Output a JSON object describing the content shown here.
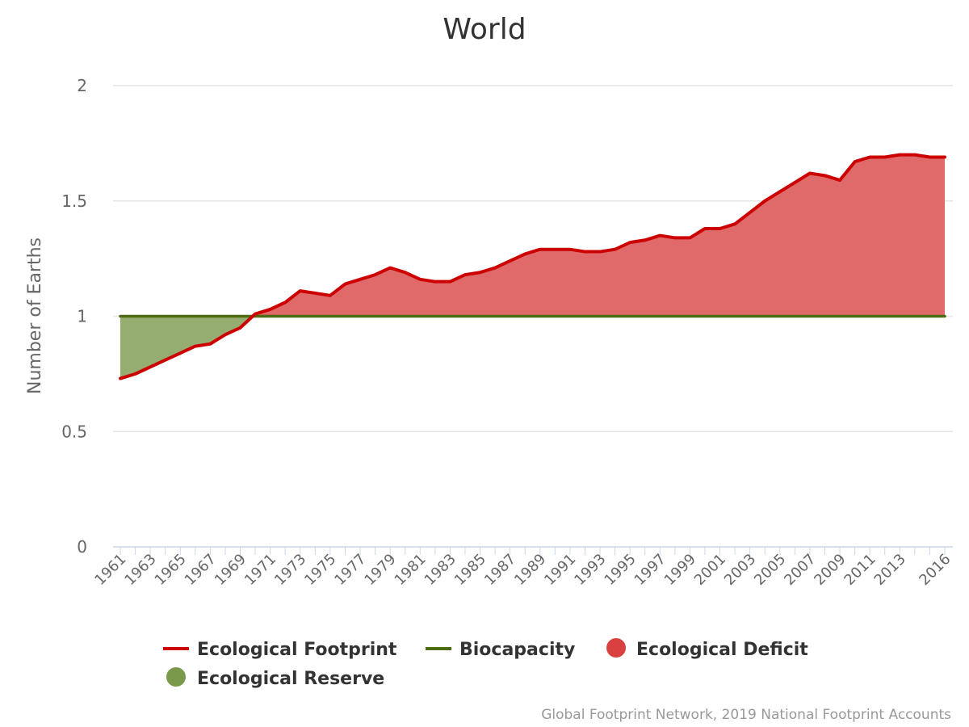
{
  "chart_data": {
    "type": "area",
    "title": "World",
    "ylabel": "Number of Earths",
    "xlabel": "",
    "ylim": [
      0,
      2
    ],
    "y_ticks": [
      "0",
      "0.5",
      "1",
      "1.5",
      "2"
    ],
    "y_tick_values": [
      0,
      0.5,
      1,
      1.5,
      2
    ],
    "x": [
      1961,
      1962,
      1963,
      1964,
      1965,
      1966,
      1967,
      1968,
      1969,
      1970,
      1971,
      1972,
      1973,
      1974,
      1975,
      1976,
      1977,
      1978,
      1979,
      1980,
      1981,
      1982,
      1983,
      1984,
      1985,
      1986,
      1987,
      1988,
      1989,
      1990,
      1991,
      1992,
      1993,
      1994,
      1995,
      1996,
      1997,
      1998,
      1999,
      2000,
      2001,
      2002,
      2003,
      2004,
      2005,
      2006,
      2007,
      2008,
      2009,
      2010,
      2011,
      2012,
      2013,
      2014,
      2015,
      2016
    ],
    "x_ticks": [
      "1961",
      "1963",
      "1965",
      "1967",
      "1969",
      "1971",
      "1973",
      "1975",
      "1977",
      "1979",
      "1981",
      "1983",
      "1985",
      "1987",
      "1989",
      "1991",
      "1993",
      "1995",
      "1997",
      "1999",
      "2001",
      "2003",
      "2005",
      "2007",
      "2009",
      "2011",
      "2013",
      "2016"
    ],
    "series": [
      {
        "name": "Ecological Footprint",
        "kind": "line",
        "color": "#cc0000",
        "values": [
          0.73,
          0.75,
          0.78,
          0.81,
          0.84,
          0.87,
          0.88,
          0.92,
          0.95,
          1.01,
          1.03,
          1.06,
          1.11,
          1.1,
          1.09,
          1.14,
          1.16,
          1.18,
          1.21,
          1.19,
          1.16,
          1.15,
          1.15,
          1.18,
          1.19,
          1.21,
          1.24,
          1.27,
          1.29,
          1.29,
          1.29,
          1.28,
          1.28,
          1.29,
          1.32,
          1.33,
          1.35,
          1.34,
          1.34,
          1.38,
          1.38,
          1.4,
          1.45,
          1.5,
          1.54,
          1.58,
          1.62,
          1.61,
          1.59,
          1.67,
          1.69,
          1.69,
          1.7,
          1.7,
          1.69,
          1.69
        ]
      },
      {
        "name": "Biocapacity",
        "kind": "line",
        "color": "#4d6b12",
        "values": [
          1,
          1,
          1,
          1,
          1,
          1,
          1,
          1,
          1,
          1,
          1,
          1,
          1,
          1,
          1,
          1,
          1,
          1,
          1,
          1,
          1,
          1,
          1,
          1,
          1,
          1,
          1,
          1,
          1,
          1,
          1,
          1,
          1,
          1,
          1,
          1,
          1,
          1,
          1,
          1,
          1,
          1,
          1,
          1,
          1,
          1,
          1,
          1,
          1,
          1,
          1,
          1,
          1,
          1,
          1,
          1
        ]
      },
      {
        "name": "Ecological Deficit",
        "kind": "area",
        "color": "#d94040",
        "fill_color": "#e06a6a"
      },
      {
        "name": "Ecological Reserve",
        "kind": "area",
        "color": "#7a994a",
        "fill_color": "#96ad72"
      }
    ],
    "legend_position": "bottom",
    "grid": true
  },
  "credits": "Global Footprint Network, 2019 National Footprint Accounts"
}
